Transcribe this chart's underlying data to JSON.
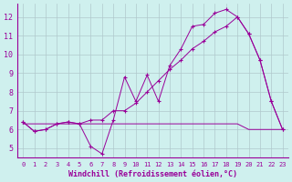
{
  "xlabel": "Windchill (Refroidissement éolien,°C)",
  "bg_color": "#cff0ee",
  "line_color": "#990099",
  "grid_color": "#b0c8cc",
  "line1_x": [
    0,
    1,
    2,
    3,
    4,
    5,
    6,
    7,
    8,
    9,
    10,
    11,
    12,
    13,
    14,
    15,
    16,
    17,
    18,
    19,
    20,
    21,
    22,
    23
  ],
  "line1_y": [
    6.4,
    5.9,
    6.0,
    6.3,
    6.4,
    6.3,
    5.1,
    4.7,
    6.5,
    8.8,
    7.5,
    8.9,
    7.5,
    9.4,
    10.3,
    11.5,
    11.6,
    12.2,
    12.4,
    12.0,
    11.1,
    9.7,
    7.5,
    6.0
  ],
  "line2_x": [
    0,
    1,
    2,
    3,
    4,
    5,
    6,
    7,
    8,
    9,
    10,
    11,
    12,
    13,
    14,
    15,
    16,
    17,
    18,
    19,
    20,
    21,
    22,
    23
  ],
  "line2_y": [
    6.4,
    5.9,
    6.0,
    6.3,
    6.4,
    6.3,
    6.5,
    6.5,
    7.0,
    7.0,
    7.4,
    8.0,
    8.6,
    9.2,
    9.7,
    10.3,
    10.7,
    11.2,
    11.5,
    12.0,
    11.1,
    9.7,
    7.5,
    6.0
  ],
  "line3_x": [
    0,
    1,
    2,
    3,
    4,
    5,
    6,
    7,
    8,
    9,
    10,
    11,
    12,
    13,
    14,
    15,
    16,
    17,
    18,
    19,
    20,
    21,
    22,
    23
  ],
  "line3_y": [
    6.3,
    6.3,
    6.3,
    6.3,
    6.3,
    6.3,
    6.3,
    6.3,
    6.3,
    6.3,
    6.3,
    6.3,
    6.3,
    6.3,
    6.3,
    6.3,
    6.3,
    6.3,
    6.3,
    6.3,
    6.0,
    6.0,
    6.0,
    6.0
  ],
  "ylim": [
    4.5,
    12.7
  ],
  "yticks": [
    5,
    6,
    7,
    8,
    9,
    10,
    11,
    12
  ],
  "xlim": [
    -0.5,
    23.5
  ],
  "xticks": [
    0,
    1,
    2,
    3,
    4,
    5,
    6,
    7,
    8,
    9,
    10,
    11,
    12,
    13,
    14,
    15,
    16,
    17,
    18,
    19,
    20,
    21,
    22,
    23
  ]
}
